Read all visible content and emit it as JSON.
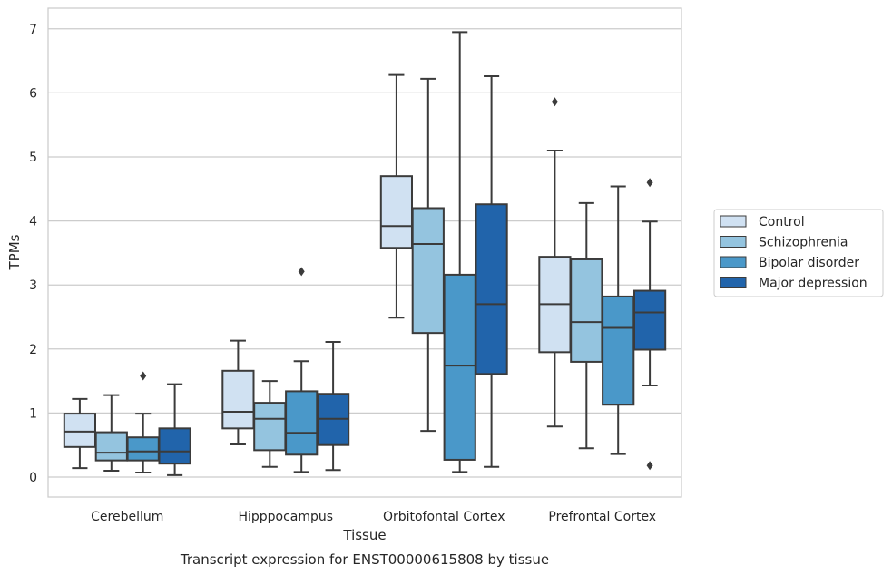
{
  "chart_data": {
    "type": "boxplot",
    "title": "",
    "caption": "Transcript expression for ENST00000615808 by tissue",
    "xlabel": "Tissue",
    "ylabel": "TPMs",
    "ylim": [
      -0.32,
      7.32
    ],
    "yticks": [
      0,
      1,
      2,
      3,
      4,
      5,
      6,
      7
    ],
    "grid": "y",
    "legend_position": "right",
    "categories": [
      "Cerebellum",
      "Hipppocampus",
      "Orbitofontal Cortex",
      "Prefrontal Cortex"
    ],
    "series": [
      {
        "name": "Control",
        "color": "#d0e1f2",
        "boxes": [
          {
            "whislo": 0.14,
            "q1": 0.47,
            "med": 0.71,
            "q3": 0.99,
            "whishi": 1.22,
            "fliers": []
          },
          {
            "whislo": 0.51,
            "q1": 0.76,
            "med": 1.02,
            "q3": 1.66,
            "whishi": 2.13,
            "fliers": []
          },
          {
            "whislo": 2.49,
            "q1": 3.58,
            "med": 3.92,
            "q3": 4.7,
            "whishi": 6.28,
            "fliers": []
          },
          {
            "whislo": 0.79,
            "q1": 1.95,
            "med": 2.7,
            "q3": 3.44,
            "whishi": 5.1,
            "fliers": [
              5.86
            ]
          }
        ]
      },
      {
        "name": "Schizophrenia",
        "color": "#94c4df",
        "boxes": [
          {
            "whislo": 0.1,
            "q1": 0.26,
            "med": 0.38,
            "q3": 0.7,
            "whishi": 1.28,
            "fliers": []
          },
          {
            "whislo": 0.16,
            "q1": 0.42,
            "med": 0.91,
            "q3": 1.16,
            "whishi": 1.5,
            "fliers": []
          },
          {
            "whislo": 0.72,
            "q1": 2.25,
            "med": 3.64,
            "q3": 4.2,
            "whishi": 6.22,
            "fliers": []
          },
          {
            "whislo": 0.45,
            "q1": 1.8,
            "med": 2.42,
            "q3": 3.4,
            "whishi": 4.28,
            "fliers": []
          }
        ]
      },
      {
        "name": "Bipolar disorder",
        "color": "#4a98c9",
        "boxes": [
          {
            "whislo": 0.07,
            "q1": 0.26,
            "med": 0.4,
            "q3": 0.62,
            "whishi": 0.99,
            "fliers": [
              1.58
            ]
          },
          {
            "whislo": 0.08,
            "q1": 0.35,
            "med": 0.69,
            "q3": 1.34,
            "whishi": 1.81,
            "fliers": [
              3.21
            ]
          },
          {
            "whislo": 0.08,
            "q1": 0.27,
            "med": 1.74,
            "q3": 3.16,
            "whishi": 6.95,
            "fliers": []
          },
          {
            "whislo": 0.36,
            "q1": 1.13,
            "med": 2.33,
            "q3": 2.82,
            "whishi": 4.54,
            "fliers": []
          }
        ]
      },
      {
        "name": "Major depression",
        "color": "#2164ab",
        "boxes": [
          {
            "whislo": 0.03,
            "q1": 0.21,
            "med": 0.4,
            "q3": 0.76,
            "whishi": 1.45,
            "fliers": []
          },
          {
            "whislo": 0.11,
            "q1": 0.5,
            "med": 0.91,
            "q3": 1.3,
            "whishi": 2.11,
            "fliers": []
          },
          {
            "whislo": 0.16,
            "q1": 1.61,
            "med": 2.7,
            "q3": 4.26,
            "whishi": 6.26,
            "fliers": []
          },
          {
            "whislo": 1.43,
            "q1": 1.99,
            "med": 2.57,
            "q3": 2.91,
            "whishi": 3.99,
            "fliers": [
              4.6,
              0.18
            ]
          }
        ]
      }
    ]
  }
}
